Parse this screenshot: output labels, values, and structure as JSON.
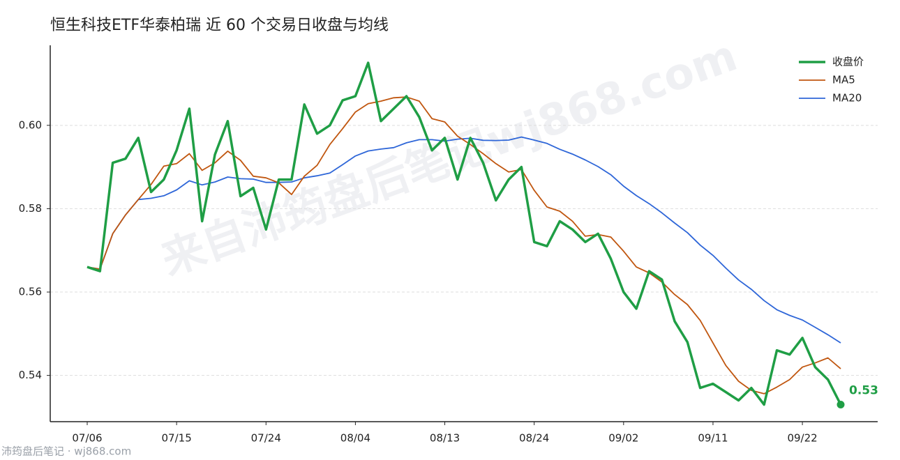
{
  "chart_data": {
    "type": "line",
    "title": "恒生科技ETF华泰柏瑞 近 60 个交易日收盘与均线",
    "watermark": "来自沛筠盘后笔记wj868.com",
    "footer": "沛筠盘后笔记 · wj868.com",
    "categories": [
      "07/06",
      null,
      null,
      null,
      null,
      null,
      null,
      "07/15",
      null,
      null,
      null,
      null,
      null,
      null,
      "07/24",
      null,
      null,
      null,
      null,
      null,
      null,
      "08/04",
      null,
      null,
      null,
      null,
      null,
      null,
      "08/13",
      null,
      null,
      null,
      null,
      null,
      null,
      "08/24",
      null,
      null,
      null,
      null,
      null,
      null,
      "09/02",
      null,
      null,
      null,
      null,
      null,
      null,
      "09/11",
      null,
      null,
      null,
      null,
      null,
      null,
      "09/22",
      null,
      null,
      null
    ],
    "ylim": [
      0.5289,
      0.6192
    ],
    "yticks": [
      0.54,
      0.56,
      0.58,
      {
        "value": 0.6,
        "label": "0.60"
      }
    ],
    "grid": true,
    "legend": "upper-right",
    "series": [
      {
        "name": "收盘价",
        "color": "#1f9e45",
        "values": [
          0.566,
          0.565,
          0.591,
          0.592,
          0.597,
          0.584,
          0.587,
          0.594,
          0.604,
          0.577,
          0.593,
          0.601,
          0.583,
          0.585,
          0.575,
          0.587,
          0.587,
          0.605,
          0.598,
          0.6,
          0.606,
          0.607,
          0.615,
          0.601,
          0.604,
          0.607,
          0.602,
          0.594,
          0.597,
          0.587,
          0.597,
          0.591,
          0.582,
          0.587,
          0.59,
          0.572,
          0.571,
          0.577,
          0.575,
          0.572,
          0.574,
          0.568,
          0.56,
          0.556,
          0.565,
          0.563,
          0.553,
          0.548,
          0.537,
          0.538,
          0.536,
          0.534,
          0.537,
          0.533,
          0.546,
          0.545,
          0.549,
          0.542,
          0.539,
          0.533
        ],
        "value_labels": [
          null,
          null,
          null,
          null,
          null,
          null,
          null,
          null,
          null,
          null,
          null,
          null,
          null,
          null,
          null,
          null,
          null,
          null,
          null,
          null,
          null,
          null,
          null,
          null,
          null,
          null,
          null,
          null,
          null,
          null,
          null,
          null,
          null,
          null,
          null,
          null,
          null,
          null,
          null,
          null,
          null,
          null,
          null,
          null,
          null,
          null,
          null,
          null,
          null,
          null,
          null,
          null,
          null,
          null,
          null,
          null,
          null,
          null,
          null,
          "0.53"
        ]
      },
      {
        "name": "MA5",
        "color": "#c0560f",
        "values": [
          0.566,
          0.5655,
          0.574,
          0.5785,
          0.5822,
          0.5858,
          0.5902,
          0.5908,
          0.5932,
          0.5892,
          0.591,
          0.5938,
          0.5916,
          0.5878,
          0.5874,
          0.5862,
          0.5834,
          0.5878,
          0.5904,
          0.5954,
          0.5992,
          0.6032,
          0.6052,
          0.6058,
          0.6066,
          0.6068,
          0.6058,
          0.6016,
          0.6008,
          0.5974,
          0.5954,
          0.5932,
          0.5908,
          0.5888,
          0.5894,
          0.5844,
          0.5804,
          0.5794,
          0.577,
          0.5734,
          0.5738,
          0.5732,
          0.5698,
          0.566,
          0.5646,
          0.5624,
          0.5594,
          0.557,
          0.5532,
          0.5478,
          0.5424,
          0.5386,
          0.5364,
          0.5356,
          0.5372,
          0.539,
          0.542,
          0.543,
          0.5442,
          0.5416
        ]
      },
      {
        "name": "MA20",
        "color": "#2e66d8",
        "values": [
          0.566,
          0.5655,
          0.574,
          0.5785,
          0.5822,
          0.5825,
          0.5831,
          0.5845,
          0.5867,
          0.5857,
          0.5864,
          0.5876,
          0.5872,
          0.5871,
          0.5863,
          0.5863,
          0.5864,
          0.5874,
          0.5879,
          0.58855,
          0.59055,
          0.59265,
          0.59385,
          0.5943,
          0.59465,
          0.5958,
          0.59655,
          0.59655,
          0.5962,
          0.5967,
          0.5969,
          0.5964,
          0.59635,
          0.59645,
          0.5972,
          0.59645,
          0.59565,
          0.59425,
          0.5931,
          0.5917,
          0.5901,
          0.58815,
          0.5854,
          0.58315,
          0.5812,
          0.579,
          0.57655,
          0.57425,
          0.57125,
          0.5688,
          0.56575,
          0.5629,
          0.56065,
          0.55795,
          0.55575,
          0.5544,
          0.5533,
          0.55155,
          0.54975,
          0.5478
        ]
      }
    ]
  }
}
